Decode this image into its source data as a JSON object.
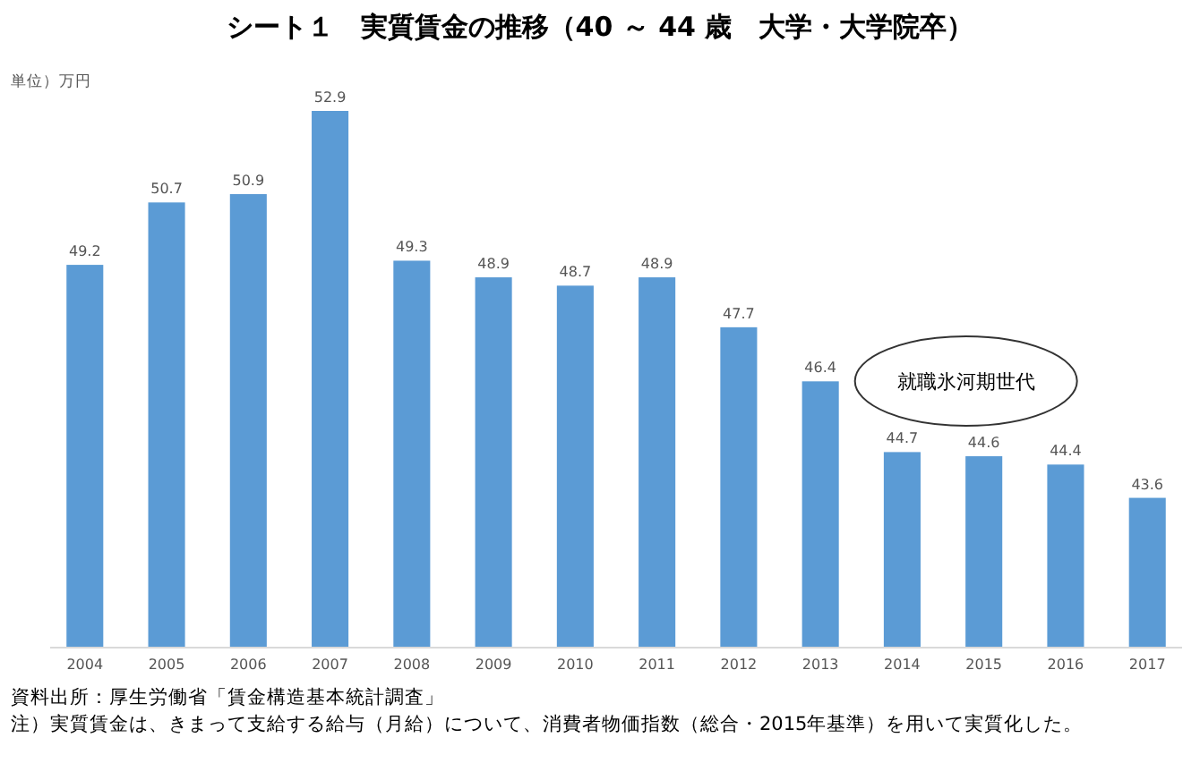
{
  "chart_data": {
    "type": "bar",
    "title": "シート１　実質賃金の推移（40 ～ 44 歳　大学・大学院卒）",
    "categories": [
      "2004",
      "2005",
      "2006",
      "2007",
      "2008",
      "2009",
      "2010",
      "2011",
      "2012",
      "2013",
      "2014",
      "2015",
      "2016",
      "2017"
    ],
    "values": [
      49.2,
      50.7,
      50.9,
      52.9,
      49.3,
      48.9,
      48.7,
      48.9,
      47.7,
      46.4,
      44.7,
      44.6,
      44.4,
      43.6
    ],
    "color": "#5b9bd5",
    "ylim": [
      40,
      52.9
    ],
    "data_labels": true,
    "tick_labels": "x",
    "annotations": [
      "単位）万円",
      "就職氷河期世代",
      "資料出所：厚生労働省「賃金構造基本統計調査」",
      "注）実質賃金は、きまって支給する給与（月給）について、消費者物価指数（総合・2015年基準）を用いて実質化した。"
    ]
  }
}
